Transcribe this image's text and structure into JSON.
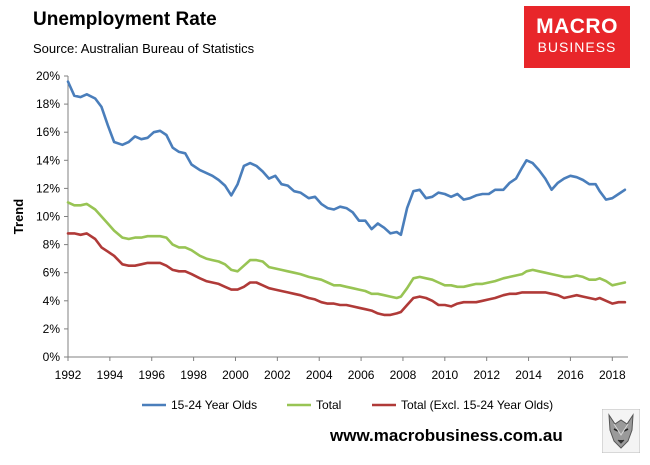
{
  "header": {
    "title": "Unemployment Rate",
    "source": "Source: Australian Bureau of Statistics"
  },
  "logo": {
    "line1": "MACRO",
    "line2": "BUSINESS"
  },
  "footer": {
    "website": "www.macrobusiness.com.au"
  },
  "chart_data": {
    "type": "line",
    "title": "Unemployment Rate",
    "xlabel": "",
    "ylabel": "Trend",
    "xlim": [
      1992,
      2018.75
    ],
    "ylim": [
      0,
      20
    ],
    "x_ticks": [
      1992,
      1994,
      1996,
      1998,
      2000,
      2002,
      2004,
      2006,
      2008,
      2010,
      2012,
      2014,
      2016,
      2018
    ],
    "y_ticks": [
      0,
      2,
      4,
      6,
      8,
      10,
      12,
      14,
      16,
      18,
      20
    ],
    "y_tick_format": "%",
    "gridlines": false,
    "legend_position": "bottom",
    "series": [
      {
        "name": "15-24 Year Olds",
        "color": "#4a7ebb",
        "points": [
          [
            1992.0,
            19.6
          ],
          [
            1992.3,
            18.6
          ],
          [
            1992.6,
            18.5
          ],
          [
            1992.9,
            18.7
          ],
          [
            1993.3,
            18.4
          ],
          [
            1993.6,
            17.8
          ],
          [
            1993.9,
            16.5
          ],
          [
            1994.2,
            15.3
          ],
          [
            1994.6,
            15.1
          ],
          [
            1994.9,
            15.3
          ],
          [
            1995.2,
            15.7
          ],
          [
            1995.5,
            15.5
          ],
          [
            1995.8,
            15.6
          ],
          [
            1996.1,
            16.0
          ],
          [
            1996.4,
            16.1
          ],
          [
            1996.7,
            15.8
          ],
          [
            1997.0,
            14.9
          ],
          [
            1997.3,
            14.6
          ],
          [
            1997.6,
            14.5
          ],
          [
            1997.9,
            13.7
          ],
          [
            1998.3,
            13.3
          ],
          [
            1998.6,
            13.1
          ],
          [
            1998.9,
            12.9
          ],
          [
            1999.2,
            12.6
          ],
          [
            1999.5,
            12.2
          ],
          [
            1999.8,
            11.5
          ],
          [
            2000.1,
            12.3
          ],
          [
            2000.4,
            13.6
          ],
          [
            2000.7,
            13.8
          ],
          [
            2001.0,
            13.6
          ],
          [
            2001.3,
            13.2
          ],
          [
            2001.6,
            12.7
          ],
          [
            2001.9,
            12.9
          ],
          [
            2002.2,
            12.3
          ],
          [
            2002.5,
            12.2
          ],
          [
            2002.8,
            11.8
          ],
          [
            2003.1,
            11.7
          ],
          [
            2003.5,
            11.3
          ],
          [
            2003.8,
            11.4
          ],
          [
            2004.1,
            10.9
          ],
          [
            2004.4,
            10.6
          ],
          [
            2004.7,
            10.5
          ],
          [
            2005.0,
            10.7
          ],
          [
            2005.3,
            10.6
          ],
          [
            2005.6,
            10.3
          ],
          [
            2005.9,
            9.7
          ],
          [
            2006.2,
            9.7
          ],
          [
            2006.5,
            9.1
          ],
          [
            2006.8,
            9.5
          ],
          [
            2007.1,
            9.2
          ],
          [
            2007.4,
            8.8
          ],
          [
            2007.7,
            8.9
          ],
          [
            2007.9,
            8.7
          ],
          [
            2008.2,
            10.6
          ],
          [
            2008.5,
            11.8
          ],
          [
            2008.8,
            11.9
          ],
          [
            2009.1,
            11.3
          ],
          [
            2009.4,
            11.4
          ],
          [
            2009.7,
            11.7
          ],
          [
            2010.0,
            11.6
          ],
          [
            2010.3,
            11.4
          ],
          [
            2010.6,
            11.6
          ],
          [
            2010.9,
            11.2
          ],
          [
            2011.2,
            11.3
          ],
          [
            2011.5,
            11.5
          ],
          [
            2011.8,
            11.6
          ],
          [
            2012.1,
            11.6
          ],
          [
            2012.4,
            11.9
          ],
          [
            2012.8,
            11.9
          ],
          [
            2013.1,
            12.4
          ],
          [
            2013.4,
            12.7
          ],
          [
            2013.7,
            13.5
          ],
          [
            2013.9,
            14.0
          ],
          [
            2014.2,
            13.8
          ],
          [
            2014.5,
            13.3
          ],
          [
            2014.8,
            12.7
          ],
          [
            2015.1,
            11.9
          ],
          [
            2015.4,
            12.4
          ],
          [
            2015.7,
            12.7
          ],
          [
            2016.0,
            12.9
          ],
          [
            2016.3,
            12.8
          ],
          [
            2016.6,
            12.6
          ],
          [
            2016.9,
            12.3
          ],
          [
            2017.2,
            12.3
          ],
          [
            2017.4,
            11.8
          ],
          [
            2017.7,
            11.2
          ],
          [
            2018.0,
            11.3
          ],
          [
            2018.3,
            11.6
          ],
          [
            2018.6,
            11.9
          ]
        ]
      },
      {
        "name": "Total",
        "color": "#98c454",
        "points": [
          [
            1992.0,
            11.0
          ],
          [
            1992.3,
            10.8
          ],
          [
            1992.6,
            10.8
          ],
          [
            1992.9,
            10.9
          ],
          [
            1993.3,
            10.5
          ],
          [
            1993.6,
            10.0
          ],
          [
            1993.9,
            9.5
          ],
          [
            1994.2,
            9.0
          ],
          [
            1994.6,
            8.5
          ],
          [
            1994.9,
            8.4
          ],
          [
            1995.2,
            8.5
          ],
          [
            1995.5,
            8.5
          ],
          [
            1995.8,
            8.6
          ],
          [
            1996.1,
            8.6
          ],
          [
            1996.4,
            8.6
          ],
          [
            1996.7,
            8.5
          ],
          [
            1997.0,
            8.0
          ],
          [
            1997.3,
            7.8
          ],
          [
            1997.6,
            7.8
          ],
          [
            1997.9,
            7.6
          ],
          [
            1998.3,
            7.2
          ],
          [
            1998.6,
            7.0
          ],
          [
            1998.9,
            6.9
          ],
          [
            1999.2,
            6.8
          ],
          [
            1999.5,
            6.6
          ],
          [
            1999.8,
            6.2
          ],
          [
            2000.1,
            6.1
          ],
          [
            2000.4,
            6.5
          ],
          [
            2000.7,
            6.9
          ],
          [
            2001.0,
            6.9
          ],
          [
            2001.3,
            6.8
          ],
          [
            2001.6,
            6.4
          ],
          [
            2001.9,
            6.3
          ],
          [
            2002.2,
            6.2
          ],
          [
            2002.5,
            6.1
          ],
          [
            2002.8,
            6.0
          ],
          [
            2003.1,
            5.9
          ],
          [
            2003.5,
            5.7
          ],
          [
            2003.8,
            5.6
          ],
          [
            2004.1,
            5.5
          ],
          [
            2004.4,
            5.3
          ],
          [
            2004.7,
            5.1
          ],
          [
            2005.0,
            5.1
          ],
          [
            2005.3,
            5.0
          ],
          [
            2005.6,
            4.9
          ],
          [
            2005.9,
            4.8
          ],
          [
            2006.2,
            4.7
          ],
          [
            2006.5,
            4.5
          ],
          [
            2006.8,
            4.5
          ],
          [
            2007.1,
            4.4
          ],
          [
            2007.4,
            4.3
          ],
          [
            2007.7,
            4.2
          ],
          [
            2007.9,
            4.3
          ],
          [
            2008.2,
            4.9
          ],
          [
            2008.5,
            5.6
          ],
          [
            2008.8,
            5.7
          ],
          [
            2009.1,
            5.6
          ],
          [
            2009.4,
            5.5
          ],
          [
            2009.7,
            5.3
          ],
          [
            2010.0,
            5.1
          ],
          [
            2010.3,
            5.1
          ],
          [
            2010.6,
            5.0
          ],
          [
            2010.9,
            5.0
          ],
          [
            2011.2,
            5.1
          ],
          [
            2011.5,
            5.2
          ],
          [
            2011.8,
            5.2
          ],
          [
            2012.1,
            5.3
          ],
          [
            2012.4,
            5.4
          ],
          [
            2012.8,
            5.6
          ],
          [
            2013.1,
            5.7
          ],
          [
            2013.4,
            5.8
          ],
          [
            2013.7,
            5.9
          ],
          [
            2013.9,
            6.1
          ],
          [
            2014.2,
            6.2
          ],
          [
            2014.5,
            6.1
          ],
          [
            2014.8,
            6.0
          ],
          [
            2015.1,
            5.9
          ],
          [
            2015.4,
            5.8
          ],
          [
            2015.7,
            5.7
          ],
          [
            2016.0,
            5.7
          ],
          [
            2016.3,
            5.8
          ],
          [
            2016.6,
            5.7
          ],
          [
            2016.9,
            5.5
          ],
          [
            2017.2,
            5.5
          ],
          [
            2017.4,
            5.6
          ],
          [
            2017.7,
            5.4
          ],
          [
            2018.0,
            5.1
          ],
          [
            2018.3,
            5.2
          ],
          [
            2018.6,
            5.3
          ]
        ]
      },
      {
        "name": "Total (Excl. 15-24 Year Olds)",
        "color": "#b03a38",
        "points": [
          [
            1992.0,
            8.8
          ],
          [
            1992.3,
            8.8
          ],
          [
            1992.6,
            8.7
          ],
          [
            1992.9,
            8.8
          ],
          [
            1993.3,
            8.4
          ],
          [
            1993.6,
            7.8
          ],
          [
            1993.9,
            7.5
          ],
          [
            1994.2,
            7.2
          ],
          [
            1994.6,
            6.6
          ],
          [
            1994.9,
            6.5
          ],
          [
            1995.2,
            6.5
          ],
          [
            1995.5,
            6.6
          ],
          [
            1995.8,
            6.7
          ],
          [
            1996.1,
            6.7
          ],
          [
            1996.4,
            6.7
          ],
          [
            1996.7,
            6.5
          ],
          [
            1997.0,
            6.2
          ],
          [
            1997.3,
            6.1
          ],
          [
            1997.6,
            6.1
          ],
          [
            1997.9,
            5.9
          ],
          [
            1998.3,
            5.6
          ],
          [
            1998.6,
            5.4
          ],
          [
            1998.9,
            5.3
          ],
          [
            1999.2,
            5.2
          ],
          [
            1999.5,
            5.0
          ],
          [
            1999.8,
            4.8
          ],
          [
            2000.1,
            4.8
          ],
          [
            2000.4,
            5.0
          ],
          [
            2000.7,
            5.3
          ],
          [
            2001.0,
            5.3
          ],
          [
            2001.3,
            5.1
          ],
          [
            2001.6,
            4.9
          ],
          [
            2001.9,
            4.8
          ],
          [
            2002.2,
            4.7
          ],
          [
            2002.5,
            4.6
          ],
          [
            2002.8,
            4.5
          ],
          [
            2003.1,
            4.4
          ],
          [
            2003.5,
            4.2
          ],
          [
            2003.8,
            4.1
          ],
          [
            2004.1,
            3.9
          ],
          [
            2004.4,
            3.8
          ],
          [
            2004.7,
            3.8
          ],
          [
            2005.0,
            3.7
          ],
          [
            2005.3,
            3.7
          ],
          [
            2005.6,
            3.6
          ],
          [
            2005.9,
            3.5
          ],
          [
            2006.2,
            3.4
          ],
          [
            2006.5,
            3.3
          ],
          [
            2006.8,
            3.1
          ],
          [
            2007.1,
            3.0
          ],
          [
            2007.4,
            3.0
          ],
          [
            2007.7,
            3.1
          ],
          [
            2007.9,
            3.2
          ],
          [
            2008.2,
            3.7
          ],
          [
            2008.5,
            4.2
          ],
          [
            2008.8,
            4.3
          ],
          [
            2009.1,
            4.2
          ],
          [
            2009.4,
            4.0
          ],
          [
            2009.7,
            3.7
          ],
          [
            2010.0,
            3.7
          ],
          [
            2010.3,
            3.6
          ],
          [
            2010.6,
            3.8
          ],
          [
            2010.9,
            3.9
          ],
          [
            2011.2,
            3.9
          ],
          [
            2011.5,
            3.9
          ],
          [
            2011.8,
            4.0
          ],
          [
            2012.1,
            4.1
          ],
          [
            2012.4,
            4.2
          ],
          [
            2012.8,
            4.4
          ],
          [
            2013.1,
            4.5
          ],
          [
            2013.4,
            4.5
          ],
          [
            2013.7,
            4.6
          ],
          [
            2013.9,
            4.6
          ],
          [
            2014.2,
            4.6
          ],
          [
            2014.5,
            4.6
          ],
          [
            2014.8,
            4.6
          ],
          [
            2015.1,
            4.5
          ],
          [
            2015.4,
            4.4
          ],
          [
            2015.7,
            4.2
          ],
          [
            2016.0,
            4.3
          ],
          [
            2016.3,
            4.4
          ],
          [
            2016.6,
            4.3
          ],
          [
            2016.9,
            4.2
          ],
          [
            2017.2,
            4.1
          ],
          [
            2017.4,
            4.2
          ],
          [
            2017.7,
            4.0
          ],
          [
            2018.0,
            3.8
          ],
          [
            2018.3,
            3.9
          ],
          [
            2018.6,
            3.9
          ]
        ]
      }
    ]
  }
}
